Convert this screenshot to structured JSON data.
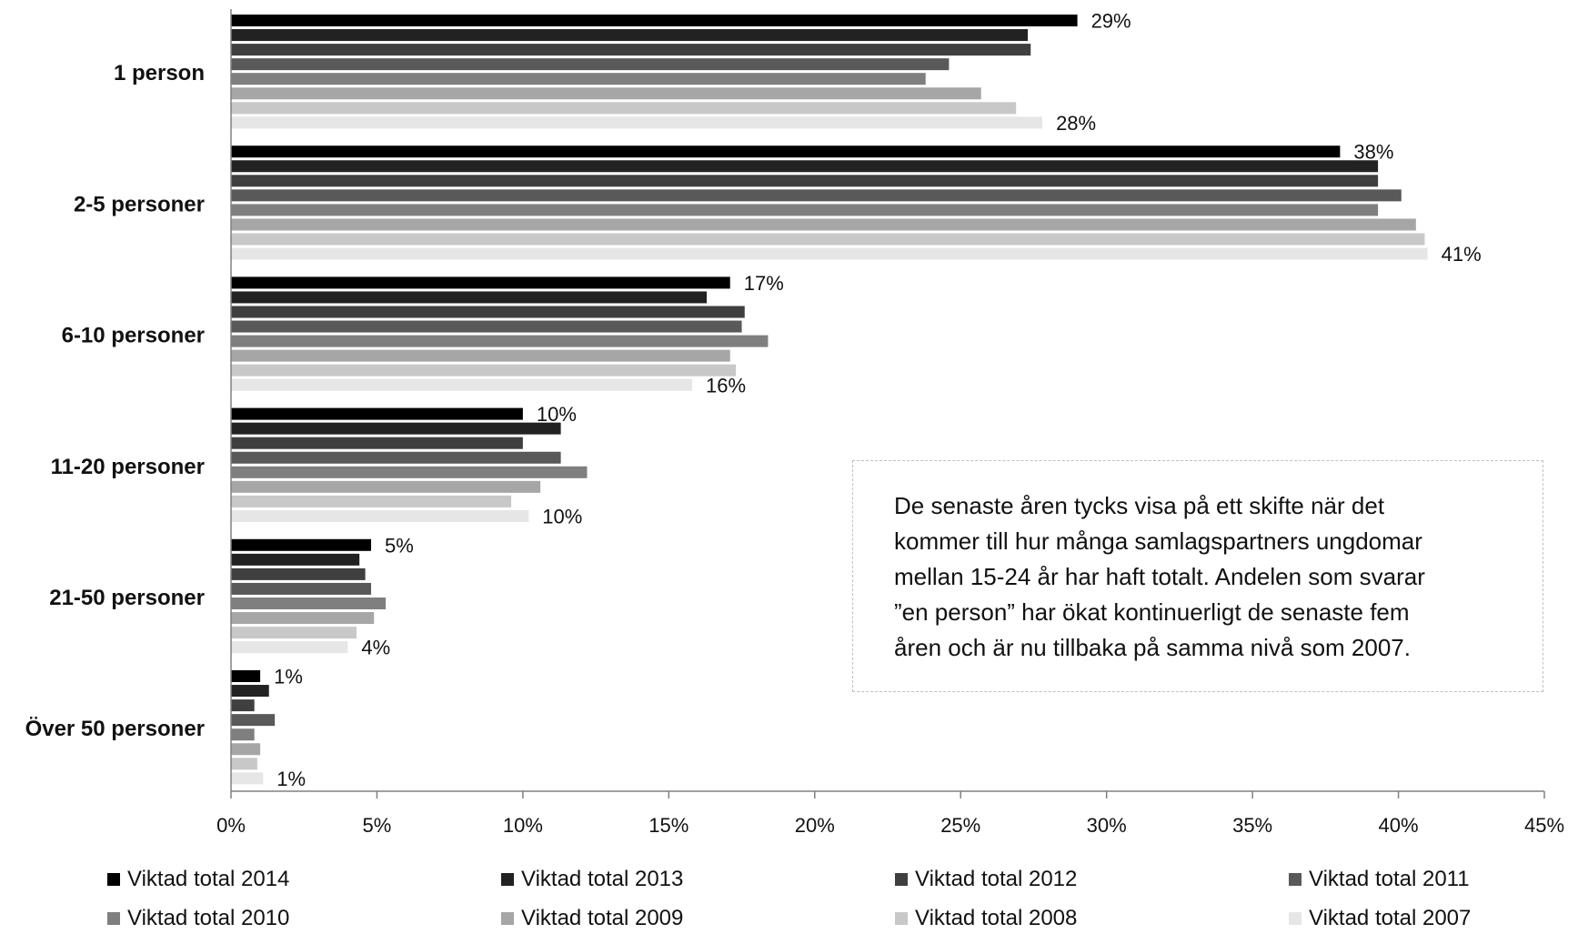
{
  "chart_data": {
    "type": "bar",
    "orientation": "horizontal",
    "categories": [
      "1 person",
      "2-5 personer",
      "6-10 personer",
      "11-20 personer",
      "21-50 personer",
      "Över 50 personer"
    ],
    "series": [
      {
        "name": "Viktad total 2014",
        "color": "#000000",
        "values": [
          29.0,
          38.0,
          17.1,
          10.0,
          4.8,
          1.0
        ]
      },
      {
        "name": "Viktad total 2013",
        "color": "#222222",
        "values": [
          27.3,
          39.3,
          16.3,
          11.3,
          4.4,
          1.3
        ]
      },
      {
        "name": "Viktad total 2012",
        "color": "#3f3f3f",
        "values": [
          27.4,
          39.3,
          17.6,
          10.0,
          4.6,
          0.8
        ]
      },
      {
        "name": "Viktad total 2011",
        "color": "#595959",
        "values": [
          24.6,
          40.1,
          17.5,
          11.3,
          4.8,
          1.5
        ]
      },
      {
        "name": "Viktad total 2010",
        "color": "#7f7f7f",
        "values": [
          23.8,
          39.3,
          18.4,
          12.2,
          5.3,
          0.8
        ]
      },
      {
        "name": "Viktad total 2009",
        "color": "#a6a6a6",
        "values": [
          25.7,
          40.6,
          17.1,
          10.6,
          4.9,
          1.0
        ]
      },
      {
        "name": "Viktad total 2008",
        "color": "#c8c8c8",
        "values": [
          26.9,
          40.9,
          17.3,
          9.6,
          4.3,
          0.9
        ]
      },
      {
        "name": "Viktad total 2007",
        "color": "#e6e6e6",
        "values": [
          27.8,
          41.0,
          15.8,
          10.2,
          4.0,
          1.1
        ]
      }
    ],
    "data_labels": [
      {
        "series_index": 0,
        "category_index": 0,
        "text": "29%"
      },
      {
        "series_index": 7,
        "category_index": 0,
        "text": "28%"
      },
      {
        "series_index": 0,
        "category_index": 1,
        "text": "38%"
      },
      {
        "series_index": 7,
        "category_index": 1,
        "text": "41%"
      },
      {
        "series_index": 0,
        "category_index": 2,
        "text": "17%"
      },
      {
        "series_index": 7,
        "category_index": 2,
        "text": "16%"
      },
      {
        "series_index": 0,
        "category_index": 3,
        "text": "10%"
      },
      {
        "series_index": 7,
        "category_index": 3,
        "text": "10%"
      },
      {
        "series_index": 0,
        "category_index": 4,
        "text": "5%"
      },
      {
        "series_index": 7,
        "category_index": 4,
        "text": "4%"
      },
      {
        "series_index": 0,
        "category_index": 5,
        "text": "1%"
      },
      {
        "series_index": 7,
        "category_index": 5,
        "text": "1%"
      }
    ],
    "x_ticks": [
      "0%",
      "5%",
      "10%",
      "15%",
      "20%",
      "25%",
      "30%",
      "35%",
      "40%",
      "45%"
    ],
    "xlim": [
      0,
      45
    ],
    "grid": false,
    "legend_position": "bottom"
  },
  "note_box": {
    "lines": [
      "De senaste åren tycks visa på ett skifte när det",
      "kommer  till hur många samlagspartners ungdomar",
      "mellan 15-24 år har haft totalt. Andelen som svarar",
      "”en person” har ökat kontinuerligt de senaste fem",
      "åren och är nu tillbaka på samma nivå som 2007."
    ]
  }
}
